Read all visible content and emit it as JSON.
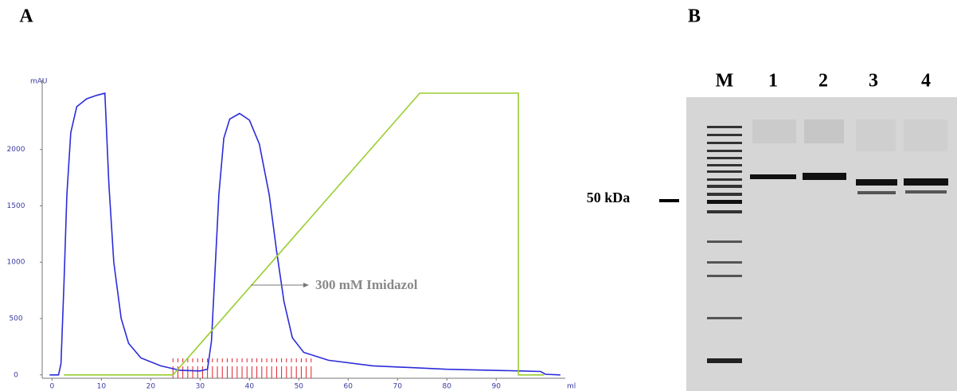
{
  "panel_labels": [
    "A",
    "B"
  ],
  "chart_data": {
    "type": "line",
    "ylabel": "mAU",
    "xlabel": "ml",
    "xlim": [
      -2,
      104
    ],
    "ylim": [
      -30,
      2620
    ],
    "xticks": [
      0,
      10,
      20,
      30,
      40,
      50,
      60,
      70,
      80,
      90
    ],
    "yticks": [
      0,
      500,
      1000,
      1500,
      2000
    ],
    "series": [
      {
        "color": "#2b2bd9",
        "x": [
          -0.5,
          1.3,
          1.8,
          2.4,
          3,
          3.8,
          5,
          7,
          9,
          10.7,
          10.9,
          11.5,
          12.5,
          14,
          15.5,
          18,
          22,
          26,
          30,
          31.5,
          32.3,
          33,
          33.8,
          34.8,
          36,
          38,
          40,
          42,
          44,
          45.5,
          47,
          48.7,
          51,
          56,
          65,
          80,
          95,
          99,
          100,
          103
        ],
        "values": [
          0,
          0,
          100,
          800,
          1600,
          2150,
          2380,
          2450,
          2480,
          2500,
          2300,
          1700,
          1000,
          500,
          280,
          150,
          80,
          40,
          35,
          50,
          300,
          900,
          1600,
          2100,
          2270,
          2320,
          2260,
          2050,
          1600,
          1100,
          650,
          330,
          200,
          130,
          80,
          50,
          35,
          30,
          5,
          0
        ]
      },
      {
        "color": "#9acd32",
        "x": [
          2.4,
          24.5,
          74.5,
          94.5,
          94.5,
          99.7
        ],
        "values": [
          0,
          0,
          2500,
          2500,
          0,
          0
        ]
      }
    ],
    "fractions": [
      24.5,
      25.5,
      26.5,
      27.5,
      28.5,
      29.5,
      30.5,
      31.5,
      32.5,
      33.5,
      34.5,
      35.5,
      36.5,
      37.5,
      38.5,
      39.5,
      40.5,
      41.5,
      42.5,
      43.5,
      44.5,
      45.5,
      46.5,
      47.5,
      48.5,
      49.5,
      50.5,
      51.5,
      52.5
    ],
    "fraction_color": "#e0202a",
    "annotation": "300 mM Imidazol"
  },
  "gel": {
    "lanes": [
      "M",
      "1",
      "2",
      "3",
      "4"
    ],
    "marker_label": "50 kDa"
  }
}
